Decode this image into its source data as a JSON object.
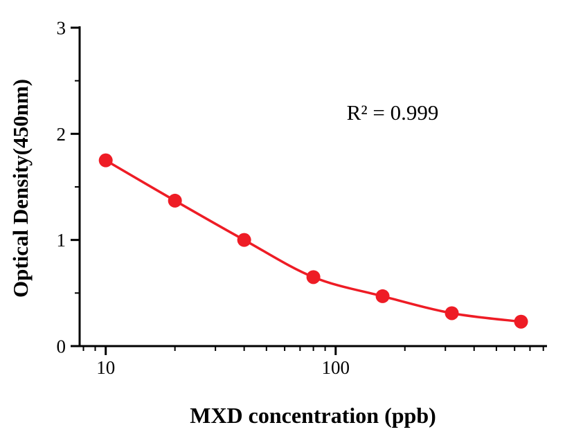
{
  "chart_data": {
    "type": "line",
    "x": [
      10,
      20,
      40,
      80,
      160,
      320,
      640
    ],
    "y": [
      1.75,
      1.37,
      1.0,
      0.65,
      0.47,
      0.31,
      0.23
    ],
    "x_scale": "log",
    "xlim": [
      7.7,
      830
    ],
    "ylim": [
      0,
      3
    ],
    "x_tick_labels": [
      "10",
      "100"
    ],
    "x_tick_values": [
      10,
      100
    ],
    "x_minor_ticks": [
      8,
      9,
      20,
      30,
      40,
      50,
      60,
      70,
      80,
      90,
      200,
      300,
      400,
      500,
      600,
      700,
      800
    ],
    "y_tick_labels": [
      "0",
      "1",
      "2",
      "3"
    ],
    "y_tick_values": [
      0,
      1,
      2,
      3
    ],
    "y_minor_ticks": [
      0.5,
      1.5,
      2.5
    ],
    "xlabel": "MXD concentration (ppb)",
    "ylabel": "Optical Density(450nm)",
    "annotation": "R² = 0.999",
    "line_color": "#ee1c25",
    "marker_color": "#ee1c25",
    "axis_color": "#000000",
    "grid": false,
    "legend": "none"
  }
}
